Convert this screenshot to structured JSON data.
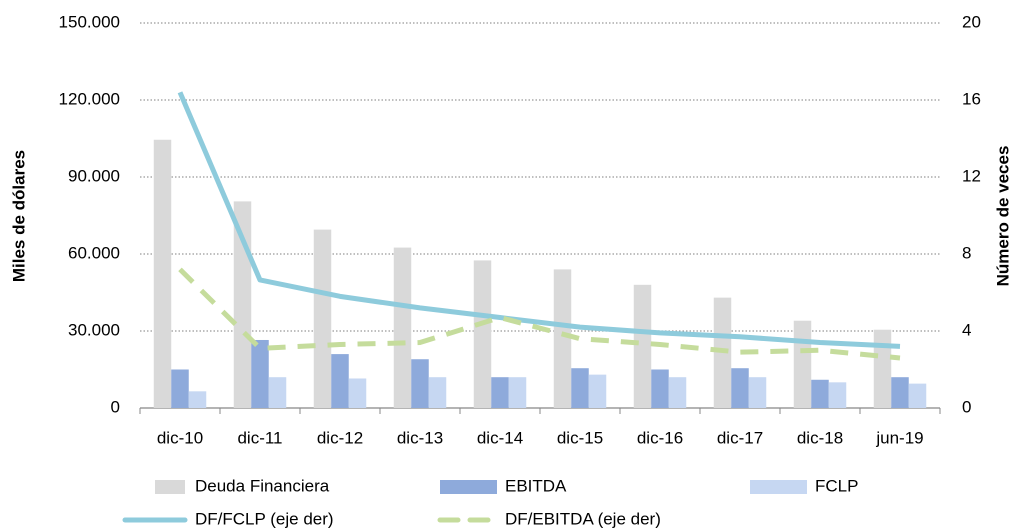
{
  "chart_data": {
    "type": "bar-line",
    "categories": [
      "dic-10",
      "dic-11",
      "dic-12",
      "dic-13",
      "dic-14",
      "dic-15",
      "dic-16",
      "dic-17",
      "dic-18",
      "jun-19"
    ],
    "y_label": "Miles de dólares",
    "y2_label": "Número de veces",
    "ylim": [
      0,
      150000
    ],
    "yticks": [
      0,
      {
        "value": 30000,
        "label": "30.000"
      },
      {
        "value": 60000,
        "label": "60.000"
      },
      {
        "value": 90000,
        "label": "90.000"
      },
      {
        "value": 120000,
        "label": "120.000"
      },
      {
        "value": 150000,
        "label": "150.000"
      }
    ],
    "y2lim": [
      0,
      20
    ],
    "y2ticks": [
      0,
      4,
      8,
      12,
      16,
      20
    ],
    "grid": true,
    "series": [
      {
        "name": "Deuda Financiera",
        "kind": "bar",
        "color": "#d9d9d9",
        "values": [
          104500,
          80500,
          69500,
          62500,
          57500,
          54000,
          48000,
          43000,
          34000,
          30500
        ]
      },
      {
        "name": "EBITDA",
        "kind": "bar",
        "color": "#8eaadb",
        "values": [
          15000,
          26500,
          21000,
          19000,
          12000,
          15500,
          15000,
          15500,
          11000,
          12000
        ]
      },
      {
        "name": "FCLP",
        "kind": "bar",
        "color": "#c6d7f2",
        "values": [
          6500,
          12000,
          11500,
          12000,
          12000,
          13000,
          12000,
          12000,
          10000,
          9500
        ]
      },
      {
        "name": "DF/FCLP (eje der)",
        "kind": "line",
        "axis": "y2",
        "color": "#8ecbdc",
        "dashed": false,
        "values": [
          16.4,
          6.65,
          5.8,
          5.2,
          4.7,
          4.2,
          3.9,
          3.7,
          3.4,
          3.2
        ]
      },
      {
        "name": "DF/EBITDA (eje der)",
        "kind": "line",
        "axis": "y2",
        "color": "#c5dc9c",
        "dashed": true,
        "values": [
          7.2,
          3.1,
          3.3,
          3.4,
          4.7,
          3.6,
          3.3,
          2.9,
          3.0,
          2.6
        ]
      }
    ]
  }
}
